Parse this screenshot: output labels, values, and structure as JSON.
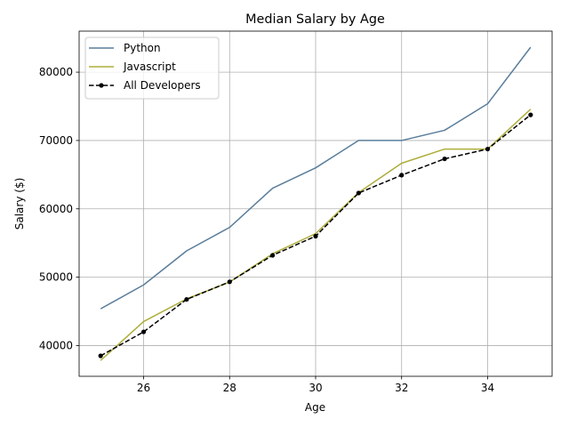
{
  "chart_data": {
    "type": "line",
    "title": "Median Salary by Age",
    "xlabel": "Age",
    "ylabel": "Salary ($)",
    "x": [
      25,
      26,
      27,
      28,
      29,
      30,
      31,
      32,
      33,
      34,
      35
    ],
    "xlim": [
      24.5,
      35.5
    ],
    "ylim": [
      35500,
      86000
    ],
    "xticks": [
      26,
      28,
      30,
      32,
      34
    ],
    "yticks": [
      40000,
      50000,
      60000,
      70000,
      80000
    ],
    "grid": true,
    "legend_position": "top-left",
    "series": [
      {
        "name": "Python",
        "color": "#5a7d9a",
        "line_style": "solid",
        "marker": "none",
        "values": [
          45372,
          48876,
          53850,
          57287,
          63016,
          65998,
          70003,
          70000,
          71496,
          75370,
          83640
        ]
      },
      {
        "name": "Javascript",
        "color": "#adad3b",
        "line_style": "solid",
        "marker": "none",
        "values": [
          37810,
          43515,
          46823,
          49293,
          53437,
          56373,
          62375,
          66674,
          68745,
          68746,
          74583
        ]
      },
      {
        "name": "All Developers",
        "color": "#000000",
        "line_style": "dashed",
        "marker": "dot",
        "values": [
          38496,
          42000,
          46752,
          49320,
          53200,
          56000,
          62316,
          64928,
          67317,
          68748,
          73752
        ]
      }
    ]
  }
}
